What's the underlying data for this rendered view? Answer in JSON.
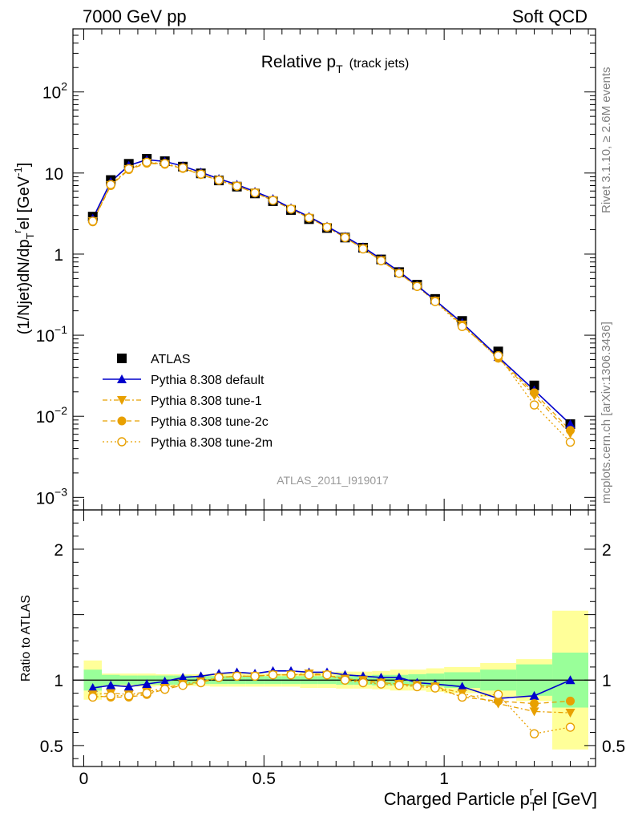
{
  "header": {
    "left": "7000 GeV pp",
    "right": "Soft QCD"
  },
  "side_text": {
    "rivet": "Rivet 3.1.10, ≥ 2.6M events",
    "mcplots": "mcplots.cern.ch [arXiv:1306.3436]"
  },
  "colors": {
    "atlas": "#000000",
    "default": "#0000cc",
    "tunes": "#e8a000",
    "band_inner": "#99ff99",
    "band_outer": "#ffff99"
  },
  "chart_data": [
    {
      "type": "scatter",
      "panel": "main",
      "title": "Relative p_T",
      "title_main": "Relative p",
      "title_sub": "T",
      "title_note": "(track jets)",
      "ylabel": "(1/Njet)dN/dp_T^rel [GeV^-1]",
      "analysis_label": "ATLAS_2011_I919017",
      "log_y": true,
      "ylim": [
        0.0007,
        600
      ],
      "xlim": [
        -0.03,
        1.42
      ],
      "y_ticks": [
        {
          "value": 0.001,
          "base": "10",
          "exp": "−3"
        },
        {
          "value": 0.01,
          "base": "10",
          "exp": "−2"
        },
        {
          "value": 0.1,
          "base": "10",
          "exp": "−1"
        },
        {
          "value": 1,
          "base": "1",
          "exp": ""
        },
        {
          "value": 10,
          "base": "10",
          "exp": ""
        },
        {
          "value": 100,
          "base": "10",
          "exp": "2"
        }
      ],
      "x": [
        0.025,
        0.075,
        0.125,
        0.175,
        0.225,
        0.275,
        0.325,
        0.375,
        0.425,
        0.475,
        0.525,
        0.575,
        0.625,
        0.675,
        0.725,
        0.775,
        0.825,
        0.875,
        0.925,
        0.975,
        1.05,
        1.15,
        1.25,
        1.35
      ],
      "legend": [
        "ATLAS",
        "Pythia 8.308 default",
        "Pythia 8.308 tune-1",
        "Pythia 8.308 tune-2c",
        "Pythia 8.308 tune-2m"
      ],
      "series": [
        {
          "name": "ATLAS",
          "marker": "square",
          "values": [
            2.9,
            8.2,
            13.0,
            15.0,
            14.0,
            12.0,
            9.9,
            8.1,
            6.8,
            5.6,
            4.5,
            3.5,
            2.7,
            2.1,
            1.6,
            1.2,
            0.86,
            0.6,
            0.42,
            0.28,
            0.15,
            0.063,
            0.024,
            0.008
          ]
        },
        {
          "name": "Pythia 8.308 default",
          "marker": "triangle-up",
          "values": [
            2.75,
            7.8,
            12.4,
            14.6,
            13.9,
            12.2,
            10.2,
            8.5,
            7.2,
            5.9,
            4.8,
            3.7,
            2.9,
            2.2,
            1.65,
            1.22,
            0.87,
            0.61,
            0.41,
            0.27,
            0.142,
            0.054,
            0.021,
            0.008
          ]
        },
        {
          "name": "Pythia 8.308 tune-1",
          "marker": "triangle-down",
          "values": [
            2.55,
            7.1,
            11.2,
            13.4,
            12.9,
            11.4,
            9.6,
            8.1,
            6.9,
            5.7,
            4.6,
            3.6,
            2.8,
            2.15,
            1.6,
            1.17,
            0.84,
            0.58,
            0.4,
            0.265,
            0.135,
            0.052,
            0.018,
            0.0061
          ]
        },
        {
          "name": "Pythia 8.308 tune-2c",
          "marker": "circle",
          "values": [
            2.5,
            7.0,
            11.0,
            13.2,
            12.8,
            11.4,
            9.6,
            8.1,
            6.9,
            5.7,
            4.6,
            3.6,
            2.8,
            2.15,
            1.6,
            1.17,
            0.83,
            0.58,
            0.4,
            0.265,
            0.133,
            0.052,
            0.0195,
            0.0067
          ]
        },
        {
          "name": "Pythia 8.308 tune-2m",
          "marker": "circle-open",
          "values": [
            2.55,
            7.2,
            11.3,
            13.6,
            13.1,
            11.6,
            9.7,
            8.2,
            6.9,
            5.7,
            4.6,
            3.6,
            2.8,
            2.15,
            1.6,
            1.16,
            0.83,
            0.58,
            0.4,
            0.26,
            0.128,
            0.056,
            0.0138,
            0.0048
          ]
        }
      ]
    },
    {
      "type": "line",
      "panel": "ratio",
      "ylabel": "Ratio to ATLAS",
      "xlabel": "Charged Particle p_T^rel [GeV]",
      "xlabel_main": "Charged Particle p",
      "xlabel_tail": "el [GeV]",
      "xlabel_sub": "T",
      "xlabel_sup": "r",
      "ylim": [
        0.34,
        2.3
      ],
      "xlim": [
        -0.03,
        1.42
      ],
      "y_ticks": [
        {
          "value": 0.5,
          "label": "0.5"
        },
        {
          "value": 1,
          "label": "1"
        },
        {
          "value": 2,
          "label": "2"
        }
      ],
      "x_ticks": [
        {
          "value": 0,
          "label": "0"
        },
        {
          "value": 0.5,
          "label": "0.5"
        },
        {
          "value": 1,
          "label": "1"
        }
      ],
      "bands": [
        {
          "x0": 0.0,
          "x1": 0.05,
          "inner": 0.08,
          "outer": 0.15
        },
        {
          "x0": 0.05,
          "x1": 0.1,
          "inner": 0.04,
          "outer": 0.05
        },
        {
          "x0": 0.1,
          "x1": 0.15,
          "inner": 0.035,
          "outer": 0.05
        },
        {
          "x0": 0.15,
          "x1": 0.2,
          "inner": 0.035,
          "outer": 0.05
        },
        {
          "x0": 0.2,
          "x1": 0.25,
          "inner": 0.035,
          "outer": 0.045
        },
        {
          "x0": 0.25,
          "x1": 0.3,
          "inner": 0.035,
          "outer": 0.045
        },
        {
          "x0": 0.3,
          "x1": 0.35,
          "inner": 0.03,
          "outer": 0.045
        },
        {
          "x0": 0.35,
          "x1": 0.4,
          "inner": 0.03,
          "outer": 0.05
        },
        {
          "x0": 0.4,
          "x1": 0.45,
          "inner": 0.03,
          "outer": 0.05
        },
        {
          "x0": 0.45,
          "x1": 0.5,
          "inner": 0.03,
          "outer": 0.05
        },
        {
          "x0": 0.5,
          "x1": 0.55,
          "inner": 0.03,
          "outer": 0.05
        },
        {
          "x0": 0.55,
          "x1": 0.6,
          "inner": 0.03,
          "outer": 0.05
        },
        {
          "x0": 0.6,
          "x1": 0.65,
          "inner": 0.03,
          "outer": 0.06
        },
        {
          "x0": 0.65,
          "x1": 0.7,
          "inner": 0.03,
          "outer": 0.06
        },
        {
          "x0": 0.7,
          "x1": 0.75,
          "inner": 0.035,
          "outer": 0.065
        },
        {
          "x0": 0.75,
          "x1": 0.8,
          "inner": 0.035,
          "outer": 0.065
        },
        {
          "x0": 0.8,
          "x1": 0.85,
          "inner": 0.04,
          "outer": 0.07
        },
        {
          "x0": 0.85,
          "x1": 0.9,
          "inner": 0.04,
          "outer": 0.08
        },
        {
          "x0": 0.9,
          "x1": 0.95,
          "inner": 0.045,
          "outer": 0.08
        },
        {
          "x0": 0.95,
          "x1": 1.0,
          "inner": 0.05,
          "outer": 0.09
        },
        {
          "x0": 1.0,
          "x1": 1.1,
          "inner": 0.06,
          "outer": 0.1
        },
        {
          "x0": 1.1,
          "x1": 1.2,
          "inner": 0.08,
          "outer": 0.13
        },
        {
          "x0": 1.2,
          "x1": 1.3,
          "inner": 0.12,
          "outer": 0.16
        },
        {
          "x0": 1.3,
          "x1": 1.4,
          "inner": 0.21,
          "outer": 0.53
        }
      ],
      "x": [
        0.025,
        0.075,
        0.125,
        0.175,
        0.225,
        0.275,
        0.325,
        0.375,
        0.425,
        0.475,
        0.525,
        0.575,
        0.625,
        0.675,
        0.725,
        0.775,
        0.825,
        0.875,
        0.925,
        0.975,
        1.05,
        1.15,
        1.25,
        1.35
      ],
      "series": [
        {
          "name": "Pythia 8.308 default",
          "marker": "triangle-up",
          "values": [
            0.94,
            0.96,
            0.95,
            0.97,
            0.99,
            1.02,
            1.03,
            1.05,
            1.06,
            1.05,
            1.07,
            1.07,
            1.06,
            1.06,
            1.04,
            1.03,
            1.02,
            1.02,
            0.98,
            0.97,
            0.95,
            0.86,
            0.88,
            1.0
          ]
        },
        {
          "name": "Pythia 8.308 tune-1",
          "marker": "triangle-down",
          "values": [
            0.89,
            0.9,
            0.89,
            0.91,
            0.94,
            0.97,
            0.99,
            1.02,
            1.03,
            1.03,
            1.04,
            1.04,
            1.05,
            1.04,
            1.01,
            1.0,
            0.98,
            0.97,
            0.96,
            0.95,
            0.9,
            0.82,
            0.76,
            0.75
          ]
        },
        {
          "name": "Pythia 8.308 tune-2c",
          "marker": "circle",
          "values": [
            0.88,
            0.87,
            0.87,
            0.89,
            0.93,
            0.96,
            0.98,
            1.02,
            1.03,
            1.03,
            1.04,
            1.04,
            1.04,
            1.04,
            1.0,
            0.99,
            0.98,
            0.97,
            0.96,
            0.95,
            0.87,
            0.84,
            0.82,
            0.84
          ]
        },
        {
          "name": "Pythia 8.308 tune-2m",
          "marker": "circle-open",
          "values": [
            0.87,
            0.88,
            0.88,
            0.9,
            0.93,
            0.96,
            0.98,
            1.02,
            1.03,
            1.03,
            1.04,
            1.04,
            1.04,
            1.04,
            1.0,
            0.98,
            0.97,
            0.96,
            0.95,
            0.94,
            0.87,
            0.89,
            0.59,
            0.64
          ]
        }
      ]
    }
  ]
}
